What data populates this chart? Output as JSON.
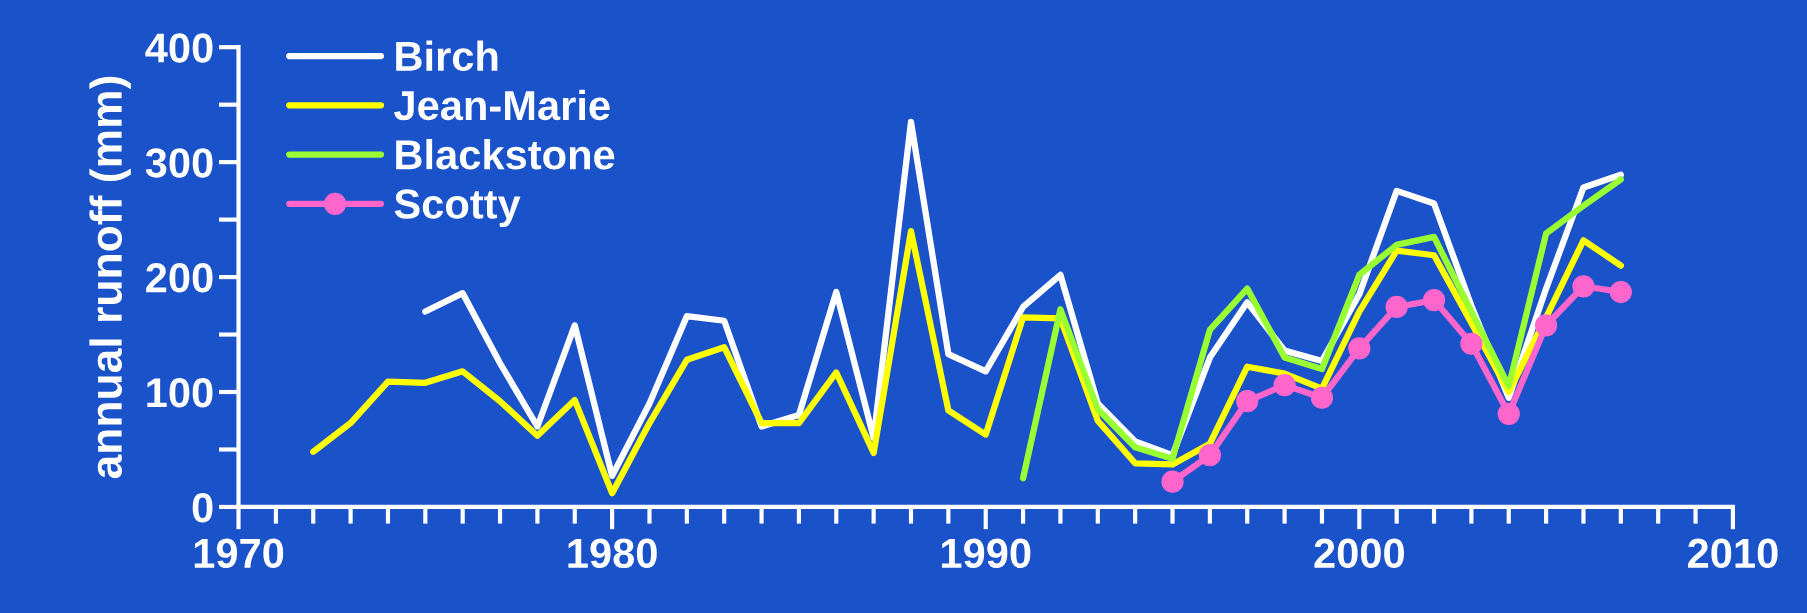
{
  "chart_data": {
    "type": "line",
    "ylabel": "annual runoff (mm)",
    "xlim": [
      1970,
      2010
    ],
    "xticks": [
      1970,
      1980,
      1990,
      2000,
      2010
    ],
    "ylim": [
      0,
      400
    ],
    "yticks": [
      0,
      100,
      200,
      300,
      400
    ],
    "grid": false,
    "legend": "top left",
    "line_style": "solid",
    "series": [
      {
        "name": "Birch",
        "color": "#ffffff",
        "marker": "none",
        "x": [
          1975,
          1976,
          1977,
          1978,
          1979,
          1980,
          1981,
          1982,
          1983,
          1984,
          1985,
          1986,
          1987,
          1988,
          1989,
          1990,
          1991,
          1992,
          1993,
          1994,
          1995,
          1996,
          1997,
          1998,
          1999,
          2000,
          2001,
          2002,
          2003,
          2004,
          2005,
          2006,
          2007
        ],
        "values": [
          170,
          186,
          125,
          70,
          158,
          27,
          90,
          166,
          162,
          70,
          80,
          187,
          60,
          335,
          133,
          118,
          174,
          202,
          90,
          57,
          45,
          130,
          178,
          136,
          127,
          185,
          275,
          264,
          175,
          95,
          190,
          278,
          289
        ]
      },
      {
        "name": "Jean-Marie",
        "color": "#ffff00",
        "marker": "none",
        "x": [
          1972,
          1973,
          1974,
          1975,
          1976,
          1977,
          1978,
          1979,
          1980,
          1981,
          1982,
          1983,
          1984,
          1985,
          1986,
          1987,
          1988,
          1989,
          1990,
          1991,
          1992,
          1993,
          1994,
          1995,
          1996,
          1997,
          1998,
          1999,
          2000,
          2001,
          2002,
          2003,
          2004,
          2005,
          2006,
          2007
        ],
        "values": [
          48,
          73,
          109,
          108,
          118,
          92,
          62,
          93,
          12,
          73,
          128,
          139,
          73,
          73,
          117,
          47,
          240,
          84,
          63,
          165,
          164,
          75,
          38,
          37,
          55,
          122,
          116,
          103,
          170,
          223,
          219,
          160,
          100,
          165,
          232,
          210
        ]
      },
      {
        "name": "Blackstone",
        "color": "#99ff33",
        "marker": "none",
        "x": [
          1991,
          1992,
          1993,
          1994,
          1995,
          1996,
          1997,
          1998,
          1999,
          2000,
          2001,
          2002,
          2003,
          2004,
          2005,
          2006,
          2007
        ],
        "values": [
          25,
          172,
          85,
          52,
          42,
          154,
          190,
          130,
          120,
          202,
          228,
          235,
          170,
          105,
          238,
          262,
          285
        ]
      },
      {
        "name": "Scotty",
        "color": "#ff66cc",
        "marker": "circle",
        "x": [
          1995,
          1996,
          1997,
          1998,
          1999,
          2000,
          2001,
          2002,
          2003,
          2004,
          2005,
          2006,
          2007
        ],
        "values": [
          22,
          45,
          92,
          106,
          95,
          138,
          174,
          180,
          142,
          81,
          158,
          192,
          187
        ]
      }
    ]
  }
}
